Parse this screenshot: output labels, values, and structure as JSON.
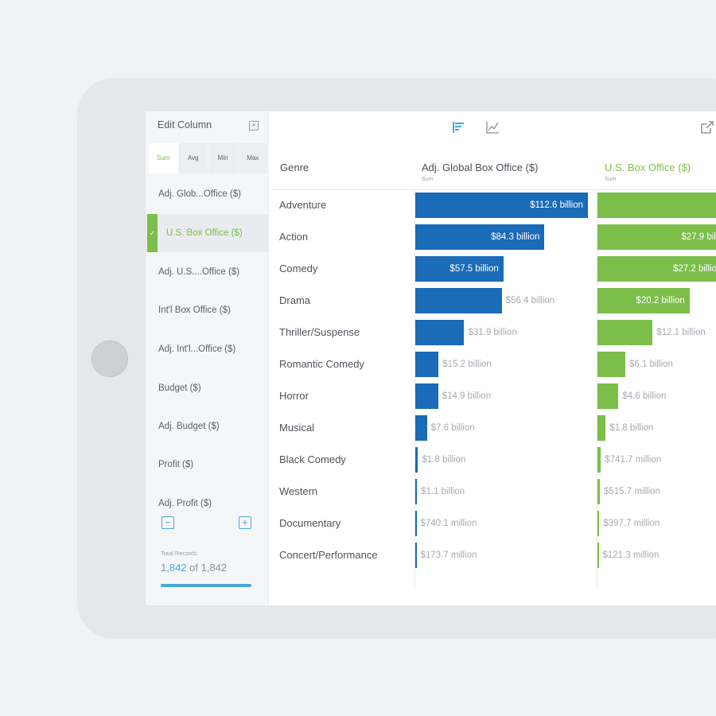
{
  "sidebar": {
    "title": "Edit Column",
    "tabs": [
      "Sum",
      "Avg",
      "Min",
      "Max"
    ],
    "items": [
      {
        "label": "Adj. Glob...Office ($)",
        "active": false
      },
      {
        "label": "U.S. Box Office ($)",
        "active": true
      },
      {
        "label": "Adj. U.S....Office ($)",
        "active": false
      },
      {
        "label": "Int'l Box Office ($)",
        "active": false
      },
      {
        "label": "Adj. Int'l...Office ($)",
        "active": false
      },
      {
        "label": "Budget ($)",
        "active": false
      },
      {
        "label": "Adj. Budget ($)",
        "active": false
      },
      {
        "label": "Profit ($)",
        "active": false
      },
      {
        "label": "Adj. Profit ($)",
        "active": false
      }
    ],
    "remove_label": "−",
    "add_label": "+",
    "total_records_label": "Total Records",
    "total_records_shown": "1,842",
    "total_records_of": "of 1,842"
  },
  "toolbar": {
    "bar_view_icon": "bar-chart-icon",
    "line_view_icon": "line-chart-icon",
    "share_icon": "share-icon"
  },
  "table": {
    "genre_header": "Genre",
    "col1_header": "Adj. Global Box Office ($)",
    "col1_sub": "Sum",
    "col2_header": "U.S. Box Office ($)",
    "col2_sub": "Sum"
  },
  "colors": {
    "blue": "#1a6bb8",
    "green": "#7bbf4a",
    "accent": "#49a9d6"
  },
  "chart_data": {
    "type": "bar",
    "categories": [
      "Adventure",
      "Action",
      "Comedy",
      "Drama",
      "Thriller/Suspense",
      "Romantic Comedy",
      "Horror",
      "Musical",
      "Black Comedy",
      "Western",
      "Documentary",
      "Concert/Performance"
    ],
    "series": [
      {
        "name": "Adj. Global Box Office ($)",
        "values": [
          112.6,
          84.3,
          57.5,
          56.4,
          31.9,
          15.2,
          14.9,
          7.6,
          1.8,
          1.1,
          0.7401,
          0.1737
        ],
        "labels": [
          "$112.6 billion",
          "$84.3 billion",
          "$57.5 billion",
          "$56.4 billion",
          "$31.9 billion",
          "$15.2 billion",
          "$14.9 billion",
          "$7.6 billion",
          "$1.8 billion",
          "$1.1 billion",
          "$740.1 million",
          "$173.7 million"
        ]
      },
      {
        "name": "U.S. Box Office ($)",
        "values": [
          37.5,
          27.9,
          27.2,
          20.2,
          12.1,
          6.1,
          4.6,
          1.8,
          0.7417,
          0.5157,
          0.3977,
          0.1213
        ],
        "labels": [
          "$",
          "$27.9 billi",
          "$27.2 billio",
          "$20.2 billion",
          "$12.1 billion",
          "$6.1 billion",
          "$4.6 billion",
          "$1.8 billion",
          "$741.7 million",
          "$515.7 million",
          "$397.7 million",
          "$121.3 million"
        ]
      }
    ]
  }
}
